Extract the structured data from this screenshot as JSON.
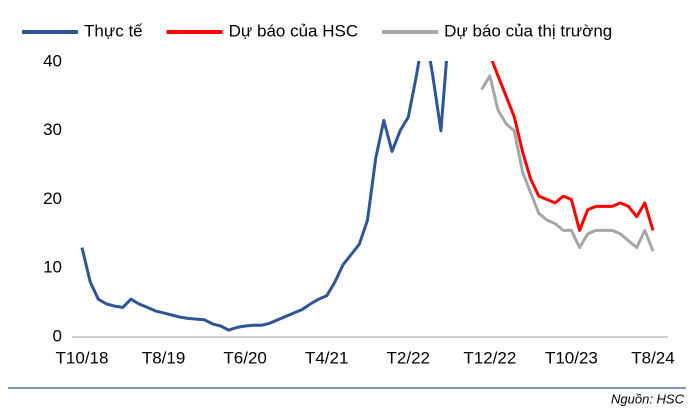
{
  "chart_data": {
    "type": "line",
    "categories": [
      "T10/18",
      null,
      null,
      null,
      null,
      null,
      null,
      null,
      null,
      null,
      "T8/19",
      null,
      null,
      null,
      null,
      null,
      null,
      null,
      null,
      null,
      "T6/20",
      null,
      null,
      null,
      null,
      null,
      null,
      null,
      null,
      null,
      "T4/21",
      null,
      null,
      null,
      null,
      null,
      null,
      null,
      null,
      null,
      "T2/22",
      null,
      null,
      null,
      null,
      null,
      null,
      null,
      null,
      null,
      "T12/22",
      null,
      null,
      null,
      null,
      null,
      null,
      null,
      null,
      null,
      "T10/23",
      null,
      null,
      null,
      null,
      null,
      null,
      null,
      null,
      null,
      "T8/24"
    ],
    "series": [
      {
        "name": "Thực tế",
        "color": "#2f5597",
        "values": [
          13,
          8,
          5.5,
          4.8,
          4.5,
          4.3,
          5.5,
          4.8,
          4.3,
          3.8,
          3.5,
          3.2,
          2.9,
          2.7,
          2.6,
          2.5,
          1.9,
          1.6,
          1.0,
          1.4,
          1.6,
          1.7,
          1.7,
          2.0,
          2.5,
          3.0,
          3.5,
          4.0,
          4.8,
          5.5,
          6.0,
          8,
          10.5,
          12,
          13.5,
          17,
          26,
          31.5,
          27,
          30,
          32,
          38,
          45,
          38,
          30,
          45,
          null,
          null,
          null,
          null,
          null,
          null,
          null,
          null,
          null,
          null,
          null,
          null,
          null,
          null,
          null,
          null,
          null,
          null,
          null,
          null,
          null,
          null,
          null,
          null,
          null
        ]
      },
      {
        "name": "Dự báo của HSC",
        "color": "#ff0000",
        "values": [
          null,
          null,
          null,
          null,
          null,
          null,
          null,
          null,
          null,
          null,
          null,
          null,
          null,
          null,
          null,
          null,
          null,
          null,
          null,
          null,
          null,
          null,
          null,
          null,
          null,
          null,
          null,
          null,
          null,
          null,
          null,
          null,
          null,
          null,
          null,
          null,
          null,
          null,
          null,
          null,
          null,
          null,
          null,
          null,
          null,
          null,
          null,
          null,
          null,
          null,
          41,
          38,
          35,
          32,
          27,
          23,
          20.5,
          20,
          19.5,
          20.5,
          20,
          15.5,
          18.5,
          19,
          19,
          19,
          19.5,
          19,
          17.5,
          19.5,
          15.5
        ]
      },
      {
        "name": "Dự báo của thị trường",
        "color": "#a6a6a6",
        "values": [
          null,
          null,
          null,
          null,
          null,
          null,
          null,
          null,
          null,
          null,
          null,
          null,
          null,
          null,
          null,
          null,
          null,
          null,
          null,
          null,
          null,
          null,
          null,
          null,
          null,
          null,
          null,
          null,
          null,
          null,
          null,
          null,
          null,
          null,
          null,
          null,
          null,
          null,
          null,
          null,
          null,
          null,
          null,
          null,
          null,
          null,
          null,
          null,
          null,
          36,
          38,
          33,
          31,
          30,
          24,
          21,
          18,
          17,
          16.5,
          15.5,
          15.5,
          13,
          15,
          15.5,
          15.5,
          15.5,
          15,
          14,
          13,
          15.5,
          12.5
        ]
      }
    ],
    "ylim": [
      0,
      40
    ],
    "yticks": [
      0,
      10,
      20,
      30,
      40
    ],
    "grid": false,
    "legend": "top",
    "source": "Nguồn: HSC"
  }
}
